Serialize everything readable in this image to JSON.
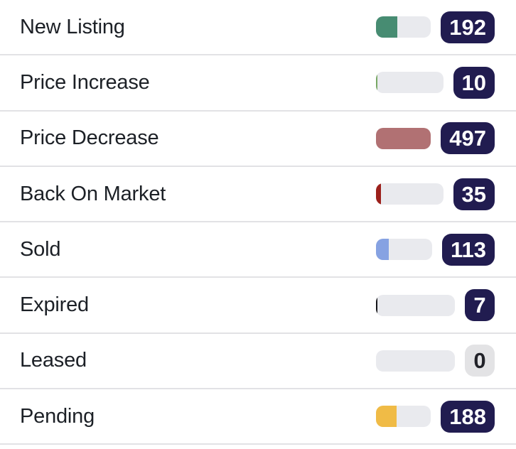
{
  "colors": {
    "background": "#ffffff",
    "track": "#e9eaee",
    "divider": "#e2e2e5",
    "label_text": "#1c2026",
    "badge_navy": "#211c50",
    "badge_gray": "#e3e3e5"
  },
  "rows": [
    {
      "label": "New Listing",
      "value": "192",
      "fill_pct": 38.6,
      "fill_color": "#478c72",
      "badge_bg": "#211c50",
      "badge_text": "#ffffff"
    },
    {
      "label": "Price Increase",
      "value": "10",
      "fill_pct": 2.0,
      "fill_color": "#77a763",
      "badge_bg": "#211c50",
      "badge_text": "#ffffff"
    },
    {
      "label": "Price Decrease",
      "value": "497",
      "fill_pct": 100,
      "fill_color": "#b17173",
      "badge_bg": "#211c50",
      "badge_text": "#ffffff"
    },
    {
      "label": "Back On Market",
      "value": "35",
      "fill_pct": 7.0,
      "fill_color": "#9c201b",
      "badge_bg": "#211c50",
      "badge_text": "#ffffff"
    },
    {
      "label": "Sold",
      "value": "113",
      "fill_pct": 22.7,
      "fill_color": "#86a2e2",
      "badge_bg": "#211c50",
      "badge_text": "#ffffff"
    },
    {
      "label": "Expired",
      "value": "7",
      "fill_pct": 1.4,
      "fill_color": "#141418",
      "badge_bg": "#211c50",
      "badge_text": "#ffffff"
    },
    {
      "label": "Leased",
      "value": "0",
      "fill_pct": 0,
      "fill_color": "transparent",
      "badge_bg": "#e3e3e5",
      "badge_text": "#212228"
    },
    {
      "label": "Pending",
      "value": "188",
      "fill_pct": 37.8,
      "fill_color": "#f0bb46",
      "badge_bg": "#211c50",
      "badge_text": "#ffffff"
    }
  ],
  "chart_data": {
    "type": "bar",
    "orientation": "horizontal",
    "categories": [
      "New Listing",
      "Price Increase",
      "Price Decrease",
      "Back On Market",
      "Sold",
      "Expired",
      "Leased",
      "Pending"
    ],
    "values": [
      192,
      10,
      497,
      35,
      113,
      7,
      0,
      188
    ],
    "max_value": 497,
    "bar_colors": [
      "#478c72",
      "#77a763",
      "#b17173",
      "#9c201b",
      "#86a2e2",
      "#141418",
      "#e9eaee",
      "#f0bb46"
    ],
    "title": "",
    "xlabel": "",
    "ylabel": "",
    "legend": false,
    "grid": false
  }
}
